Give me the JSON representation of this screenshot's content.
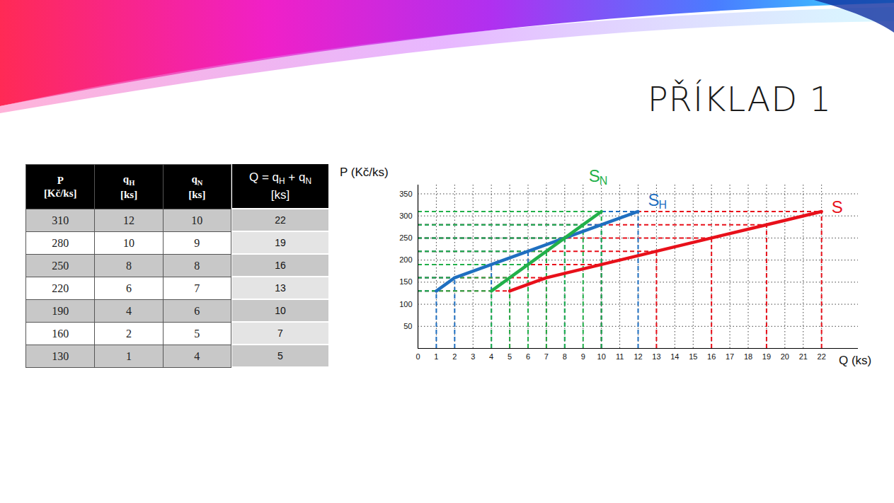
{
  "title": "PŘÍKLAD 1",
  "table": {
    "columns": [
      {
        "parts": [
          {
            "text": "P"
          }
        ],
        "unit": "[Kč/ks]"
      },
      {
        "parts": [
          {
            "text": "q"
          },
          {
            "sub": "H"
          }
        ],
        "unit": "[ks]"
      },
      {
        "parts": [
          {
            "text": "q"
          },
          {
            "sub": "N"
          }
        ],
        "unit": "[ks]"
      },
      {
        "parts": [
          {
            "text": "Q = q"
          },
          {
            "sub": "H"
          },
          {
            "text": " + q"
          },
          {
            "sub": "N"
          }
        ],
        "unit": "[ks]"
      }
    ],
    "rows": [
      [
        310,
        12,
        10,
        22
      ],
      [
        280,
        10,
        9,
        19
      ],
      [
        250,
        8,
        8,
        16
      ],
      [
        220,
        6,
        7,
        13
      ],
      [
        190,
        4,
        6,
        10
      ],
      [
        160,
        2,
        5,
        7
      ],
      [
        130,
        1,
        4,
        5
      ]
    ]
  },
  "chart_data": {
    "type": "line",
    "x_label": "Q (ks)",
    "y_label": "P (Kč/ks)",
    "xlim": [
      0,
      24
    ],
    "xticks": [
      0,
      1,
      2,
      3,
      4,
      5,
      6,
      7,
      8,
      9,
      10,
      11,
      12,
      13,
      14,
      15,
      16,
      17,
      18,
      19,
      20,
      21,
      22
    ],
    "ylim": [
      0,
      370
    ],
    "yticks": [
      50,
      100,
      150,
      200,
      250,
      300,
      350
    ],
    "grid": true,
    "series": [
      {
        "name": "S",
        "color": "#e8101a",
        "x": [
          5,
          7,
          10,
          13,
          16,
          19,
          22
        ],
        "values": [
          130,
          160,
          190,
          220,
          250,
          280,
          310
        ]
      },
      {
        "name": "SH",
        "color": "#1f6fc0",
        "x": [
          1,
          2,
          4,
          6,
          8,
          10,
          12
        ],
        "values": [
          130,
          160,
          190,
          220,
          250,
          280,
          310
        ]
      },
      {
        "name": "SN",
        "color": "#22b04a",
        "x": [
          4,
          5,
          6,
          7,
          8,
          9,
          10
        ],
        "values": [
          130,
          160,
          190,
          220,
          250,
          280,
          310
        ]
      }
    ]
  }
}
